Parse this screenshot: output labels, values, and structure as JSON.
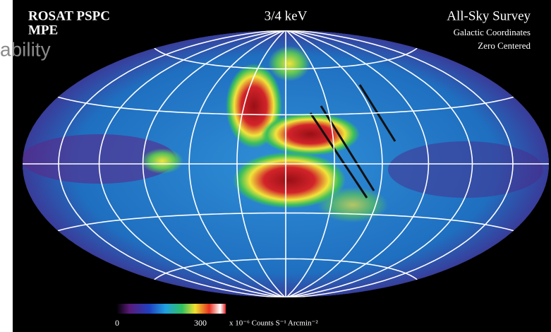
{
  "background_text": "ability",
  "header": {
    "left": [
      "ROSAT PSPC",
      "MPE"
    ],
    "center": "3/4 keV",
    "right_title": "All-Sky Survey",
    "right_lines": [
      "Galactic Coordinates",
      "Zero Centered"
    ]
  },
  "colorbar": {
    "labels": [
      "0",
      "300"
    ],
    "units": "x 10⁻⁶ Counts S⁻¹ Arcmin⁻²"
  }
}
